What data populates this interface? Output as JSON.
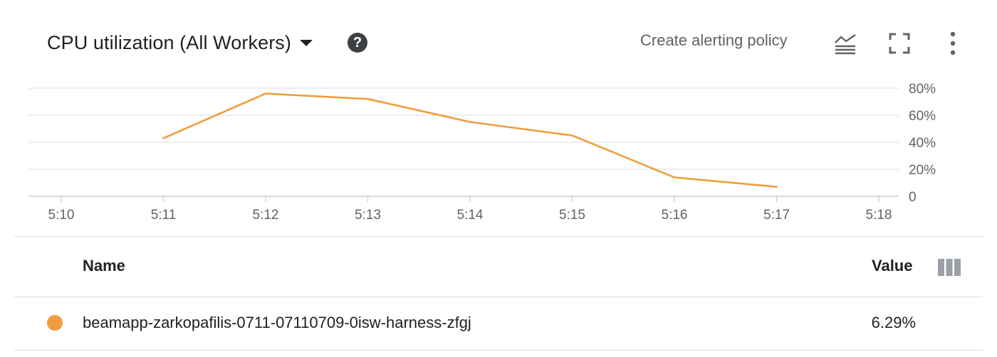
{
  "header": {
    "title": "CPU utilization (All Workers)",
    "help_symbol": "?",
    "create_alert_label": "Create alerting policy"
  },
  "icons": {
    "dropdown": "caret-down-icon",
    "help": "help-icon",
    "legend_toggle": "legend-toggle-icon",
    "fullscreen": "fullscreen-icon",
    "more": "more-vert-icon",
    "columns": "view-columns-icon"
  },
  "colors": {
    "series": "#f09d3f",
    "grid": "#e3e4e6",
    "axis_text": "#5f6368",
    "divider": "#dadce0"
  },
  "chart_data": {
    "type": "line",
    "x": [
      "5:11",
      "5:12",
      "5:13",
      "5:14",
      "5:15",
      "5:16",
      "5:17"
    ],
    "x_ticks": [
      "5:10",
      "5:11",
      "5:12",
      "5:13",
      "5:14",
      "5:15",
      "5:16",
      "5:17",
      "5:18"
    ],
    "y_ticks": [
      "0",
      "20%",
      "40%",
      "60%",
      "80%"
    ],
    "ylim": [
      0,
      80
    ],
    "series": [
      {
        "name": "beamapp-zarkopafilis-0711-07110709-0isw-harness-zfgj",
        "values": [
          43,
          76,
          72,
          55,
          45,
          14,
          7
        ]
      }
    ],
    "grid": true,
    "y_axis_position": "right"
  },
  "table": {
    "col_name": "Name",
    "col_value": "Value",
    "rows": [
      {
        "name": "beamapp-zarkopafilis-0711-07110709-0isw-harness-zfgj",
        "value": "6.29%"
      }
    ]
  }
}
